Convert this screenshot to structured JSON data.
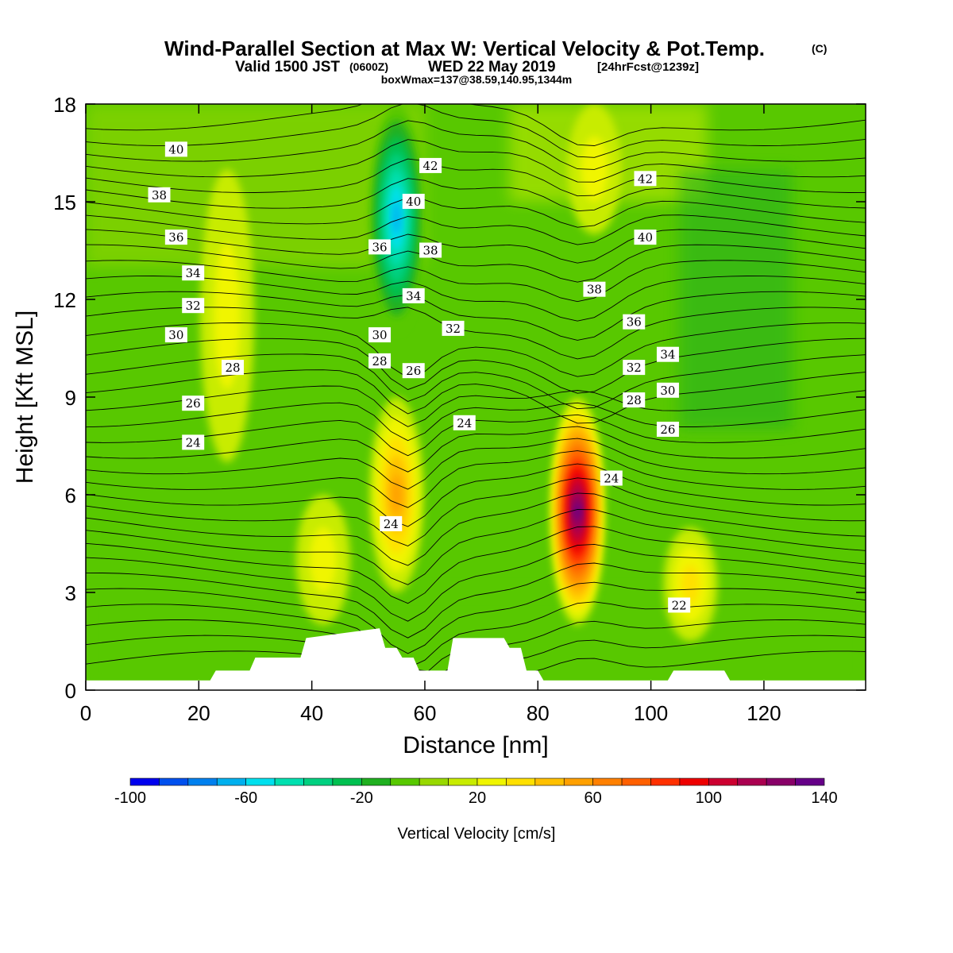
{
  "title": {
    "line1": "Wind-Parallel Section at Max W: Vertical Velocity & Pot.Temp.",
    "copyright": "(C)",
    "line2_main": "Valid 1500 JST",
    "line2_z": "(0600Z)",
    "line2_date": "WED 22 May 2019",
    "line2_fcst": "[24hrFcst@1239z]",
    "line3": "boxWmax=137@38.59,140.95,1344m"
  },
  "chart_data": {
    "type": "heatmap",
    "xlabel": "Distance [nm]",
    "ylabel": "Height [Kft MSL]",
    "xlim": [
      0,
      138
    ],
    "ylim": [
      0,
      18
    ],
    "xticks": [
      0,
      20,
      40,
      60,
      80,
      100,
      120
    ],
    "yticks": [
      0,
      3,
      6,
      9,
      12,
      15,
      18
    ],
    "colorbar": {
      "label": "Vertical Velocity [cm/s]",
      "range": [
        -100,
        140
      ],
      "step": 10,
      "tick_values": [
        -100,
        -60,
        -20,
        20,
        60,
        100,
        140
      ],
      "colors": [
        "#0000ee",
        "#0050ee",
        "#0080ee",
        "#00b0ee",
        "#00e0ee",
        "#00e0b0",
        "#00d080",
        "#00c050",
        "#20b020",
        "#58c800",
        "#98d800",
        "#c8ec00",
        "#f0f500",
        "#ffe000",
        "#ffc000",
        "#ffa000",
        "#ff8000",
        "#ff6000",
        "#ff3000",
        "#ee0000",
        "#cc0030",
        "#aa0050",
        "#880068",
        "#660088"
      ]
    },
    "vertical_velocity_features": [
      {
        "kind": "downdraft",
        "x": 55,
        "z_range": [
          11,
          18
        ],
        "peak_cm_s": -70
      },
      {
        "kind": "updraft",
        "x": 87,
        "z_range": [
          2,
          9
        ],
        "peak_cm_s": 137
      },
      {
        "kind": "updraft",
        "x": 55,
        "z_range": [
          3,
          9
        ],
        "peak_cm_s": 50
      },
      {
        "kind": "updraft",
        "x": 42,
        "z_range": [
          2,
          6
        ],
        "peak_cm_s": 25
      },
      {
        "kind": "updraft",
        "x": 107,
        "z_range": [
          1.5,
          5
        ],
        "peak_cm_s": 30
      },
      {
        "kind": "updraft",
        "x": 90,
        "z_range": [
          14,
          18
        ],
        "peak_cm_s": 25
      },
      {
        "kind": "updraft",
        "x": 25,
        "z_range": [
          7,
          16
        ],
        "peak_cm_s": 15
      }
    ],
    "theta_contour_labels": [
      {
        "text": "40",
        "x": 16,
        "z": 16.6
      },
      {
        "text": "38",
        "x": 13,
        "z": 15.2
      },
      {
        "text": "36",
        "x": 16,
        "z": 13.9
      },
      {
        "text": "34",
        "x": 19,
        "z": 12.8
      },
      {
        "text": "32",
        "x": 19,
        "z": 11.8
      },
      {
        "text": "30",
        "x": 16,
        "z": 10.9
      },
      {
        "text": "28",
        "x": 26,
        "z": 9.9
      },
      {
        "text": "26",
        "x": 19,
        "z": 8.8
      },
      {
        "text": "24",
        "x": 19,
        "z": 7.6
      },
      {
        "text": "42",
        "x": 61,
        "z": 16.1
      },
      {
        "text": "40",
        "x": 58,
        "z": 15.0
      },
      {
        "text": "36",
        "x": 52,
        "z": 13.6
      },
      {
        "text": "38",
        "x": 61,
        "z": 13.5
      },
      {
        "text": "34",
        "x": 58,
        "z": 12.1
      },
      {
        "text": "30",
        "x": 52,
        "z": 10.9
      },
      {
        "text": "32",
        "x": 65,
        "z": 11.1
      },
      {
        "text": "28",
        "x": 52,
        "z": 10.1
      },
      {
        "text": "26",
        "x": 58,
        "z": 9.8
      },
      {
        "text": "24",
        "x": 67,
        "z": 8.2
      },
      {
        "text": "24",
        "x": 54,
        "z": 5.1
      },
      {
        "text": "42",
        "x": 99,
        "z": 15.7
      },
      {
        "text": "40",
        "x": 99,
        "z": 13.9
      },
      {
        "text": "38",
        "x": 90,
        "z": 12.3
      },
      {
        "text": "36",
        "x": 97,
        "z": 11.3
      },
      {
        "text": "34",
        "x": 103,
        "z": 10.3
      },
      {
        "text": "32",
        "x": 97,
        "z": 9.9
      },
      {
        "text": "30",
        "x": 103,
        "z": 9.2
      },
      {
        "text": "28",
        "x": 97,
        "z": 8.9
      },
      {
        "text": "26",
        "x": 103,
        "z": 8.0
      },
      {
        "text": "24",
        "x": 93,
        "z": 6.5
      },
      {
        "text": "22",
        "x": 105,
        "z": 2.6
      }
    ],
    "terrain_kft": {
      "x": [
        0,
        22,
        23,
        29,
        30,
        38,
        39,
        52,
        53,
        55,
        56,
        58,
        59,
        64,
        65,
        74,
        75,
        77,
        78,
        80,
        81,
        103,
        104,
        113,
        114,
        138
      ],
      "z": [
        0.3,
        0.3,
        0.6,
        0.6,
        1.0,
        1.0,
        1.6,
        1.9,
        1.3,
        1.3,
        1.0,
        1.0,
        0.6,
        0.6,
        1.6,
        1.6,
        1.3,
        1.3,
        0.6,
        0.6,
        0.3,
        0.3,
        0.6,
        0.6,
        0.3,
        0.3
      ]
    }
  }
}
